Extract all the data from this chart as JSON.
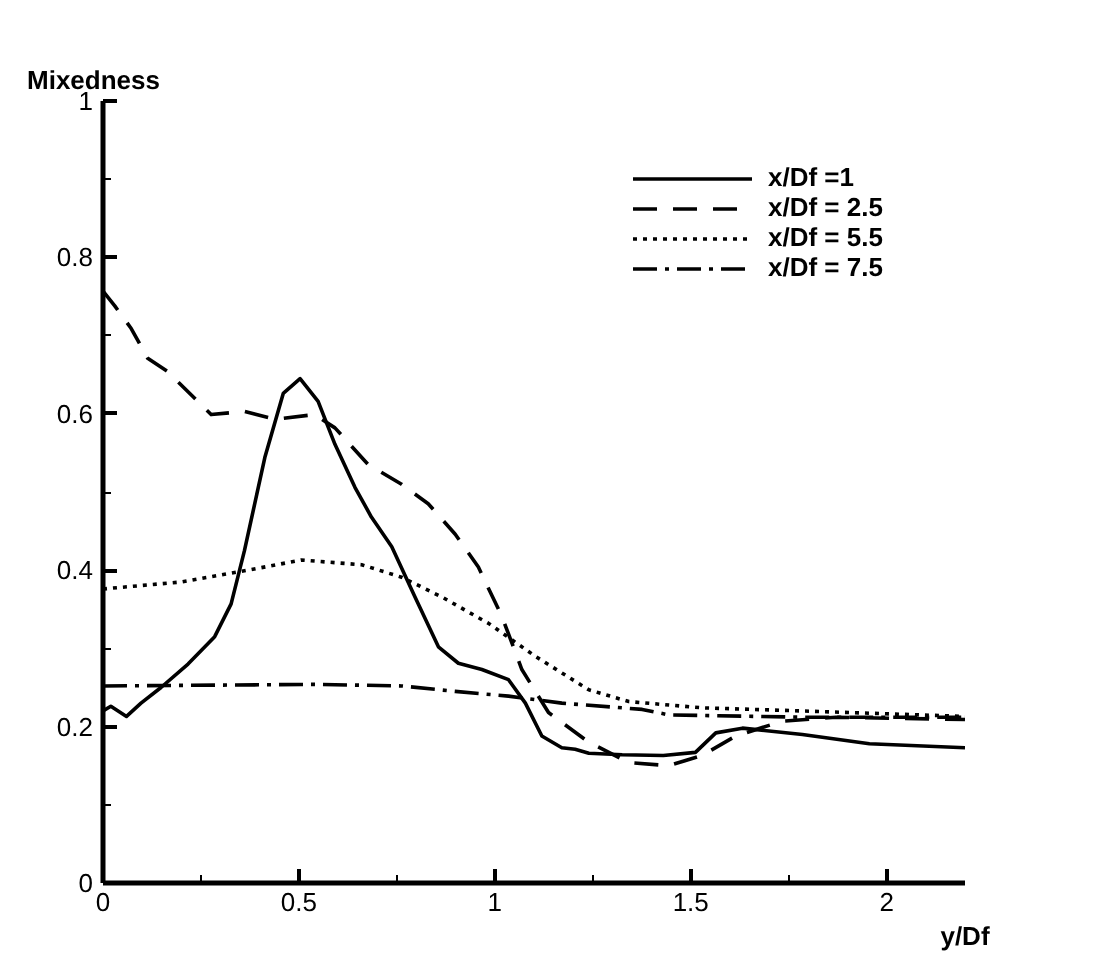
{
  "chart_data": {
    "type": "line",
    "xlabel": "y/Df",
    "ylabel": "Mixedness",
    "xlim": [
      0,
      2.2
    ],
    "ylim": [
      0,
      1
    ],
    "xticks": [
      0,
      0.5,
      1,
      1.5,
      2
    ],
    "yticks": [
      0,
      0.2,
      0.4,
      0.6,
      0.8,
      1
    ],
    "grid": false,
    "legend": "top right",
    "marker": "none",
    "series": [
      {
        "name": "x/Df =1",
        "color": "#000000",
        "line_style": "solid",
        "x": [
          0.0,
          0.02,
          0.06,
          0.097,
          0.148,
          0.217,
          0.285,
          0.327,
          0.361,
          0.413,
          0.46,
          0.503,
          0.549,
          0.592,
          0.643,
          0.685,
          0.737,
          0.796,
          0.856,
          0.907,
          0.967,
          1.035,
          1.078,
          1.12,
          1.171,
          1.205,
          1.24,
          1.325,
          1.43,
          1.512,
          1.564,
          1.632,
          1.785,
          1.956,
          2.2
        ],
        "values": [
          0.22,
          0.226,
          0.213,
          0.23,
          0.25,
          0.28,
          0.315,
          0.357,
          0.425,
          0.544,
          0.626,
          0.645,
          0.616,
          0.561,
          0.506,
          0.468,
          0.43,
          0.366,
          0.302,
          0.281,
          0.273,
          0.26,
          0.23,
          0.188,
          0.173,
          0.171,
          0.166,
          0.164,
          0.163,
          0.167,
          0.192,
          0.198,
          0.19,
          0.178,
          0.173
        ]
      },
      {
        "name": "x/Df = 2.5",
        "color": "#000000",
        "line_style": "dashed",
        "x": [
          0.0,
          0.03,
          0.072,
          0.114,
          0.165,
          0.276,
          0.361,
          0.438,
          0.54,
          0.592,
          0.677,
          0.762,
          0.83,
          0.899,
          0.958,
          1.018,
          1.069,
          1.137,
          1.24,
          1.342,
          1.444,
          1.529,
          1.615,
          1.734,
          1.871,
          2.2
        ],
        "values": [
          0.757,
          0.738,
          0.709,
          0.671,
          0.654,
          0.599,
          0.603,
          0.593,
          0.599,
          0.582,
          0.535,
          0.51,
          0.485,
          0.446,
          0.404,
          0.341,
          0.273,
          0.218,
          0.18,
          0.154,
          0.15,
          0.163,
          0.188,
          0.207,
          0.212,
          0.209
        ]
      },
      {
        "name": "x/Df = 5.5",
        "color": "#000000",
        "line_style": "dotted",
        "x": [
          0.0,
          0.2,
          0.37,
          0.506,
          0.66,
          0.762,
          0.864,
          0.984,
          1.103,
          1.24,
          1.342,
          1.529,
          1.785,
          2.2
        ],
        "values": [
          0.376,
          0.385,
          0.4,
          0.413,
          0.407,
          0.391,
          0.366,
          0.332,
          0.29,
          0.247,
          0.232,
          0.224,
          0.22,
          0.213
        ]
      },
      {
        "name": "x/Df = 7.5",
        "color": "#000000",
        "line_style": "dashdot",
        "x": [
          0.0,
          0.285,
          0.54,
          0.762,
          0.899,
          1.035,
          1.171,
          1.376,
          1.444,
          1.785,
          2.2
        ],
        "values": [
          0.252,
          0.253,
          0.254,
          0.252,
          0.245,
          0.239,
          0.23,
          0.222,
          0.215,
          0.212,
          0.212
        ]
      }
    ]
  }
}
